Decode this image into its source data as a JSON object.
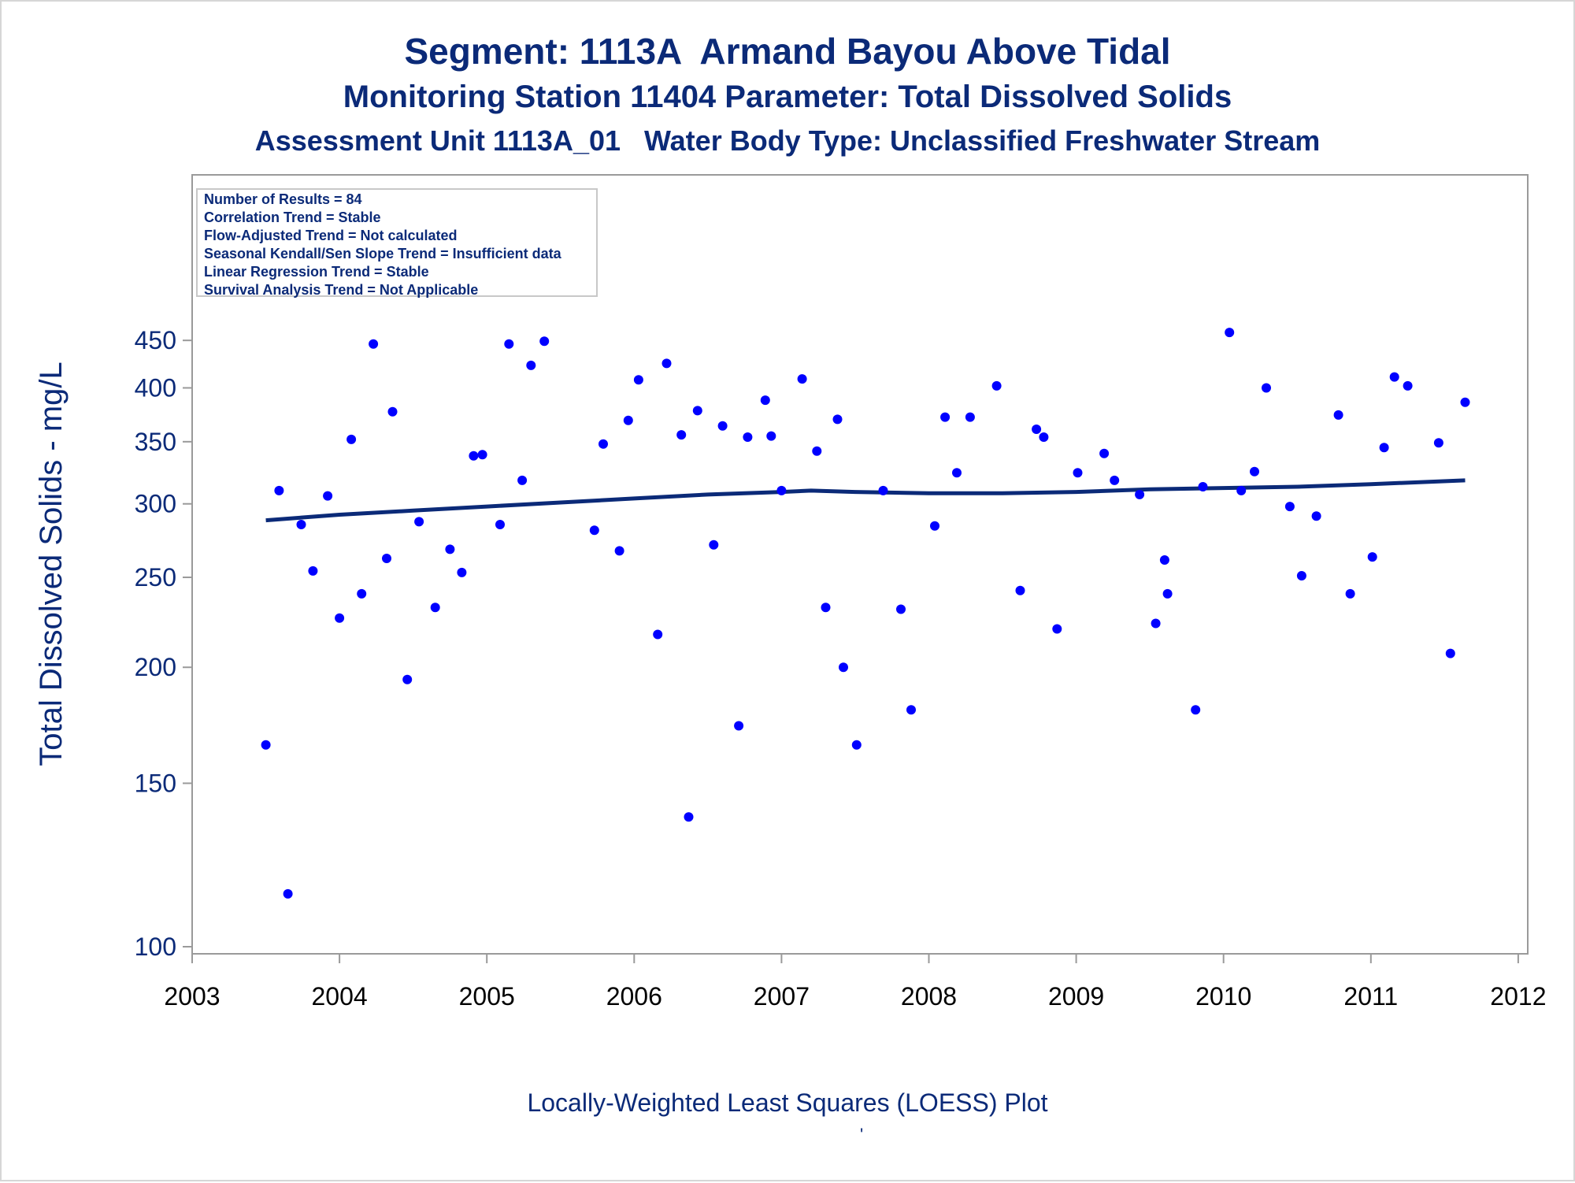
{
  "titles": {
    "main": "Segment: 1113A  Armand Bayou Above Tidal",
    "sub1": "Monitoring Station 11404 Parameter: Total Dissolved Solids",
    "sub2": "Assessment Unit 1113A_01   Water Body Type: Unclassified Freshwater Stream"
  },
  "footer": {
    "text": "Locally-Weighted Least Squares (LOESS) Plot",
    "mark": "'"
  },
  "legend": {
    "lines": [
      "Number of Results = 84",
      "Correlation Trend = Stable",
      "Flow-Adjusted Trend = Not calculated",
      "Seasonal Kendall/Sen Slope Trend = Insufficient data",
      "Linear Regression Trend = Stable",
      "Survival Analysis Trend = Not Applicable"
    ]
  },
  "colors": {
    "title": "#0b2a78",
    "points": "#0000ff",
    "loess": "#0b2a78",
    "axis": "#9a9a9a"
  },
  "chart_data": {
    "type": "scatter",
    "ylabel": "Total Dissolved Solids - mg/L",
    "xlabel": "",
    "yscale": "log",
    "xlim": [
      2003.0,
      2012.0
    ],
    "ylim": [
      98,
      465
    ],
    "x_ticks": [
      2003,
      2004,
      2005,
      2006,
      2007,
      2008,
      2009,
      2010,
      2011,
      2012
    ],
    "y_ticks": [
      100,
      150,
      200,
      250,
      300,
      350,
      400,
      450
    ],
    "grid": false,
    "legend_placement": "top-left",
    "series": [
      {
        "kind": "points",
        "x": [
          2003.5,
          2003.59,
          2003.65,
          2003.74,
          2003.82,
          2003.92,
          2004.0,
          2004.08,
          2004.15,
          2004.23,
          2004.32,
          2004.36,
          2004.46,
          2004.54,
          2004.65,
          2004.75,
          2004.83,
          2004.91,
          2004.97,
          2005.09,
          2005.15,
          2005.24,
          2005.3,
          2005.39,
          2005.73,
          2005.79,
          2005.9,
          2005.96,
          2006.03,
          2006.16,
          2006.22,
          2006.32,
          2006.37,
          2006.43,
          2006.54,
          2006.6,
          2006.71,
          2006.77,
          2006.89,
          2006.93,
          2007.0,
          2007.14,
          2007.24,
          2007.3,
          2007.38,
          2007.42,
          2007.51,
          2007.69,
          2007.81,
          2007.88,
          2008.04,
          2008.11,
          2008.19,
          2008.28,
          2008.46,
          2008.62,
          2008.73,
          2008.78,
          2008.87,
          2009.01,
          2009.19,
          2009.26,
          2009.43,
          2009.54,
          2009.6,
          2009.62,
          2009.81,
          2009.86,
          2010.04,
          2010.12,
          2010.21,
          2010.29,
          2010.45,
          2010.53,
          2010.63,
          2010.78,
          2010.86,
          2011.01,
          2011.09,
          2011.16,
          2011.25,
          2011.46,
          2011.54,
          2011.64
        ],
        "y": [
          165,
          310,
          114,
          285,
          254,
          306,
          226,
          352,
          240,
          446,
          262,
          377,
          194,
          287,
          232,
          268,
          253,
          338,
          339,
          285,
          446,
          318,
          423,
          449,
          281,
          348,
          267,
          369,
          408,
          217,
          425,
          356,
          138,
          378,
          271,
          364,
          173,
          354,
          388,
          355,
          310,
          409,
          342,
          232,
          370,
          200,
          165,
          310,
          231,
          180,
          284,
          372,
          324,
          372,
          402,
          242,
          361,
          354,
          220,
          324,
          340,
          318,
          307,
          223,
          261,
          240,
          180,
          313,
          459,
          310,
          325,
          400,
          298,
          251,
          291,
          374,
          240,
          263,
          345,
          411,
          402,
          349,
          207,
          386
        ]
      },
      {
        "kind": "loess",
        "x": [
          2003.5,
          2004.0,
          2004.5,
          2005.0,
          2005.5,
          2006.0,
          2006.5,
          2007.0,
          2007.2,
          2007.5,
          2008.0,
          2008.5,
          2009.0,
          2009.5,
          2010.0,
          2010.5,
          2011.0,
          2011.64
        ],
        "y": [
          288,
          292,
          295,
          298,
          301,
          304,
          307,
          309,
          310,
          309,
          308,
          308,
          309,
          311,
          312,
          313,
          315,
          318
        ]
      }
    ]
  }
}
